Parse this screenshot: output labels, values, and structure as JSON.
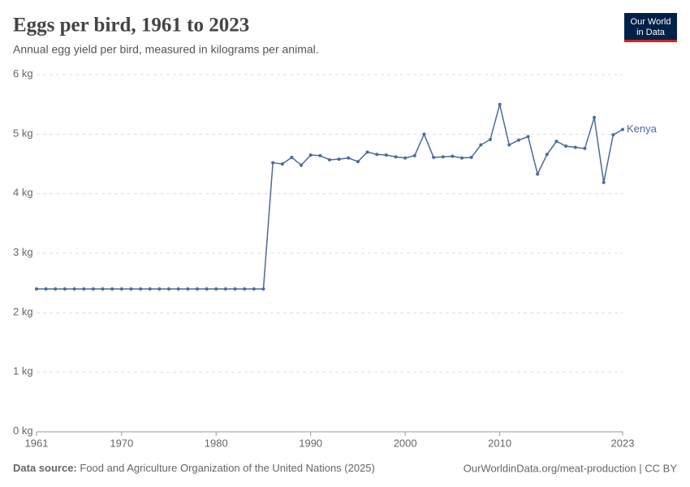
{
  "chart_data": {
    "type": "line",
    "title": "Eggs per bird, 1961 to 2023",
    "subtitle": "Annual egg yield per bird, measured in kilograms per animal.",
    "logo": [
      "Our World",
      "in Data"
    ],
    "source_label": "Data source:",
    "source": "Food and Agriculture Organization of the United Nations (2025)",
    "url": "OurWorldinData.org/meat-production | CC BY",
    "x": [
      1961,
      1962,
      1963,
      1964,
      1965,
      1966,
      1967,
      1968,
      1969,
      1970,
      1971,
      1972,
      1973,
      1974,
      1975,
      1976,
      1977,
      1978,
      1979,
      1980,
      1981,
      1982,
      1983,
      1984,
      1985,
      1986,
      1987,
      1988,
      1989,
      1990,
      1991,
      1992,
      1993,
      1994,
      1995,
      1996,
      1997,
      1998,
      1999,
      2000,
      2001,
      2002,
      2003,
      2004,
      2005,
      2006,
      2007,
      2008,
      2009,
      2010,
      2011,
      2012,
      2013,
      2014,
      2015,
      2016,
      2017,
      2018,
      2019,
      2020,
      2021,
      2022,
      2023
    ],
    "series": [
      {
        "name": "Kenya",
        "color": "#4c6a9c",
        "values": [
          2.4,
          2.4,
          2.4,
          2.4,
          2.4,
          2.4,
          2.4,
          2.4,
          2.4,
          2.4,
          2.4,
          2.4,
          2.4,
          2.4,
          2.4,
          2.4,
          2.4,
          2.4,
          2.4,
          2.4,
          2.4,
          2.4,
          2.4,
          2.4,
          2.4,
          4.52,
          4.5,
          4.61,
          4.48,
          4.65,
          4.64,
          4.57,
          4.58,
          4.6,
          4.54,
          4.7,
          4.66,
          4.65,
          4.62,
          4.6,
          4.64,
          5.0,
          4.61,
          4.62,
          4.63,
          4.6,
          4.61,
          4.82,
          4.91,
          5.5,
          4.82,
          4.9,
          4.96,
          4.33,
          4.66,
          4.88,
          4.8,
          4.78,
          4.76,
          5.28,
          4.19,
          4.99,
          5.08
        ]
      }
    ],
    "xlim": [
      1961,
      2023
    ],
    "xticks": [
      1961,
      1970,
      1980,
      1990,
      2000,
      2010,
      2023
    ],
    "ylim": [
      0,
      6
    ],
    "yticks": [
      {
        "value": 0,
        "label": "0 kg"
      },
      {
        "value": 1,
        "label": "1 kg"
      },
      {
        "value": 2,
        "label": "2 kg"
      },
      {
        "value": 3,
        "label": "3 kg"
      },
      {
        "value": 4,
        "label": "4 kg"
      },
      {
        "value": 5,
        "label": "5 kg"
      },
      {
        "value": 6,
        "label": "6 kg"
      }
    ],
    "grid": true
  }
}
